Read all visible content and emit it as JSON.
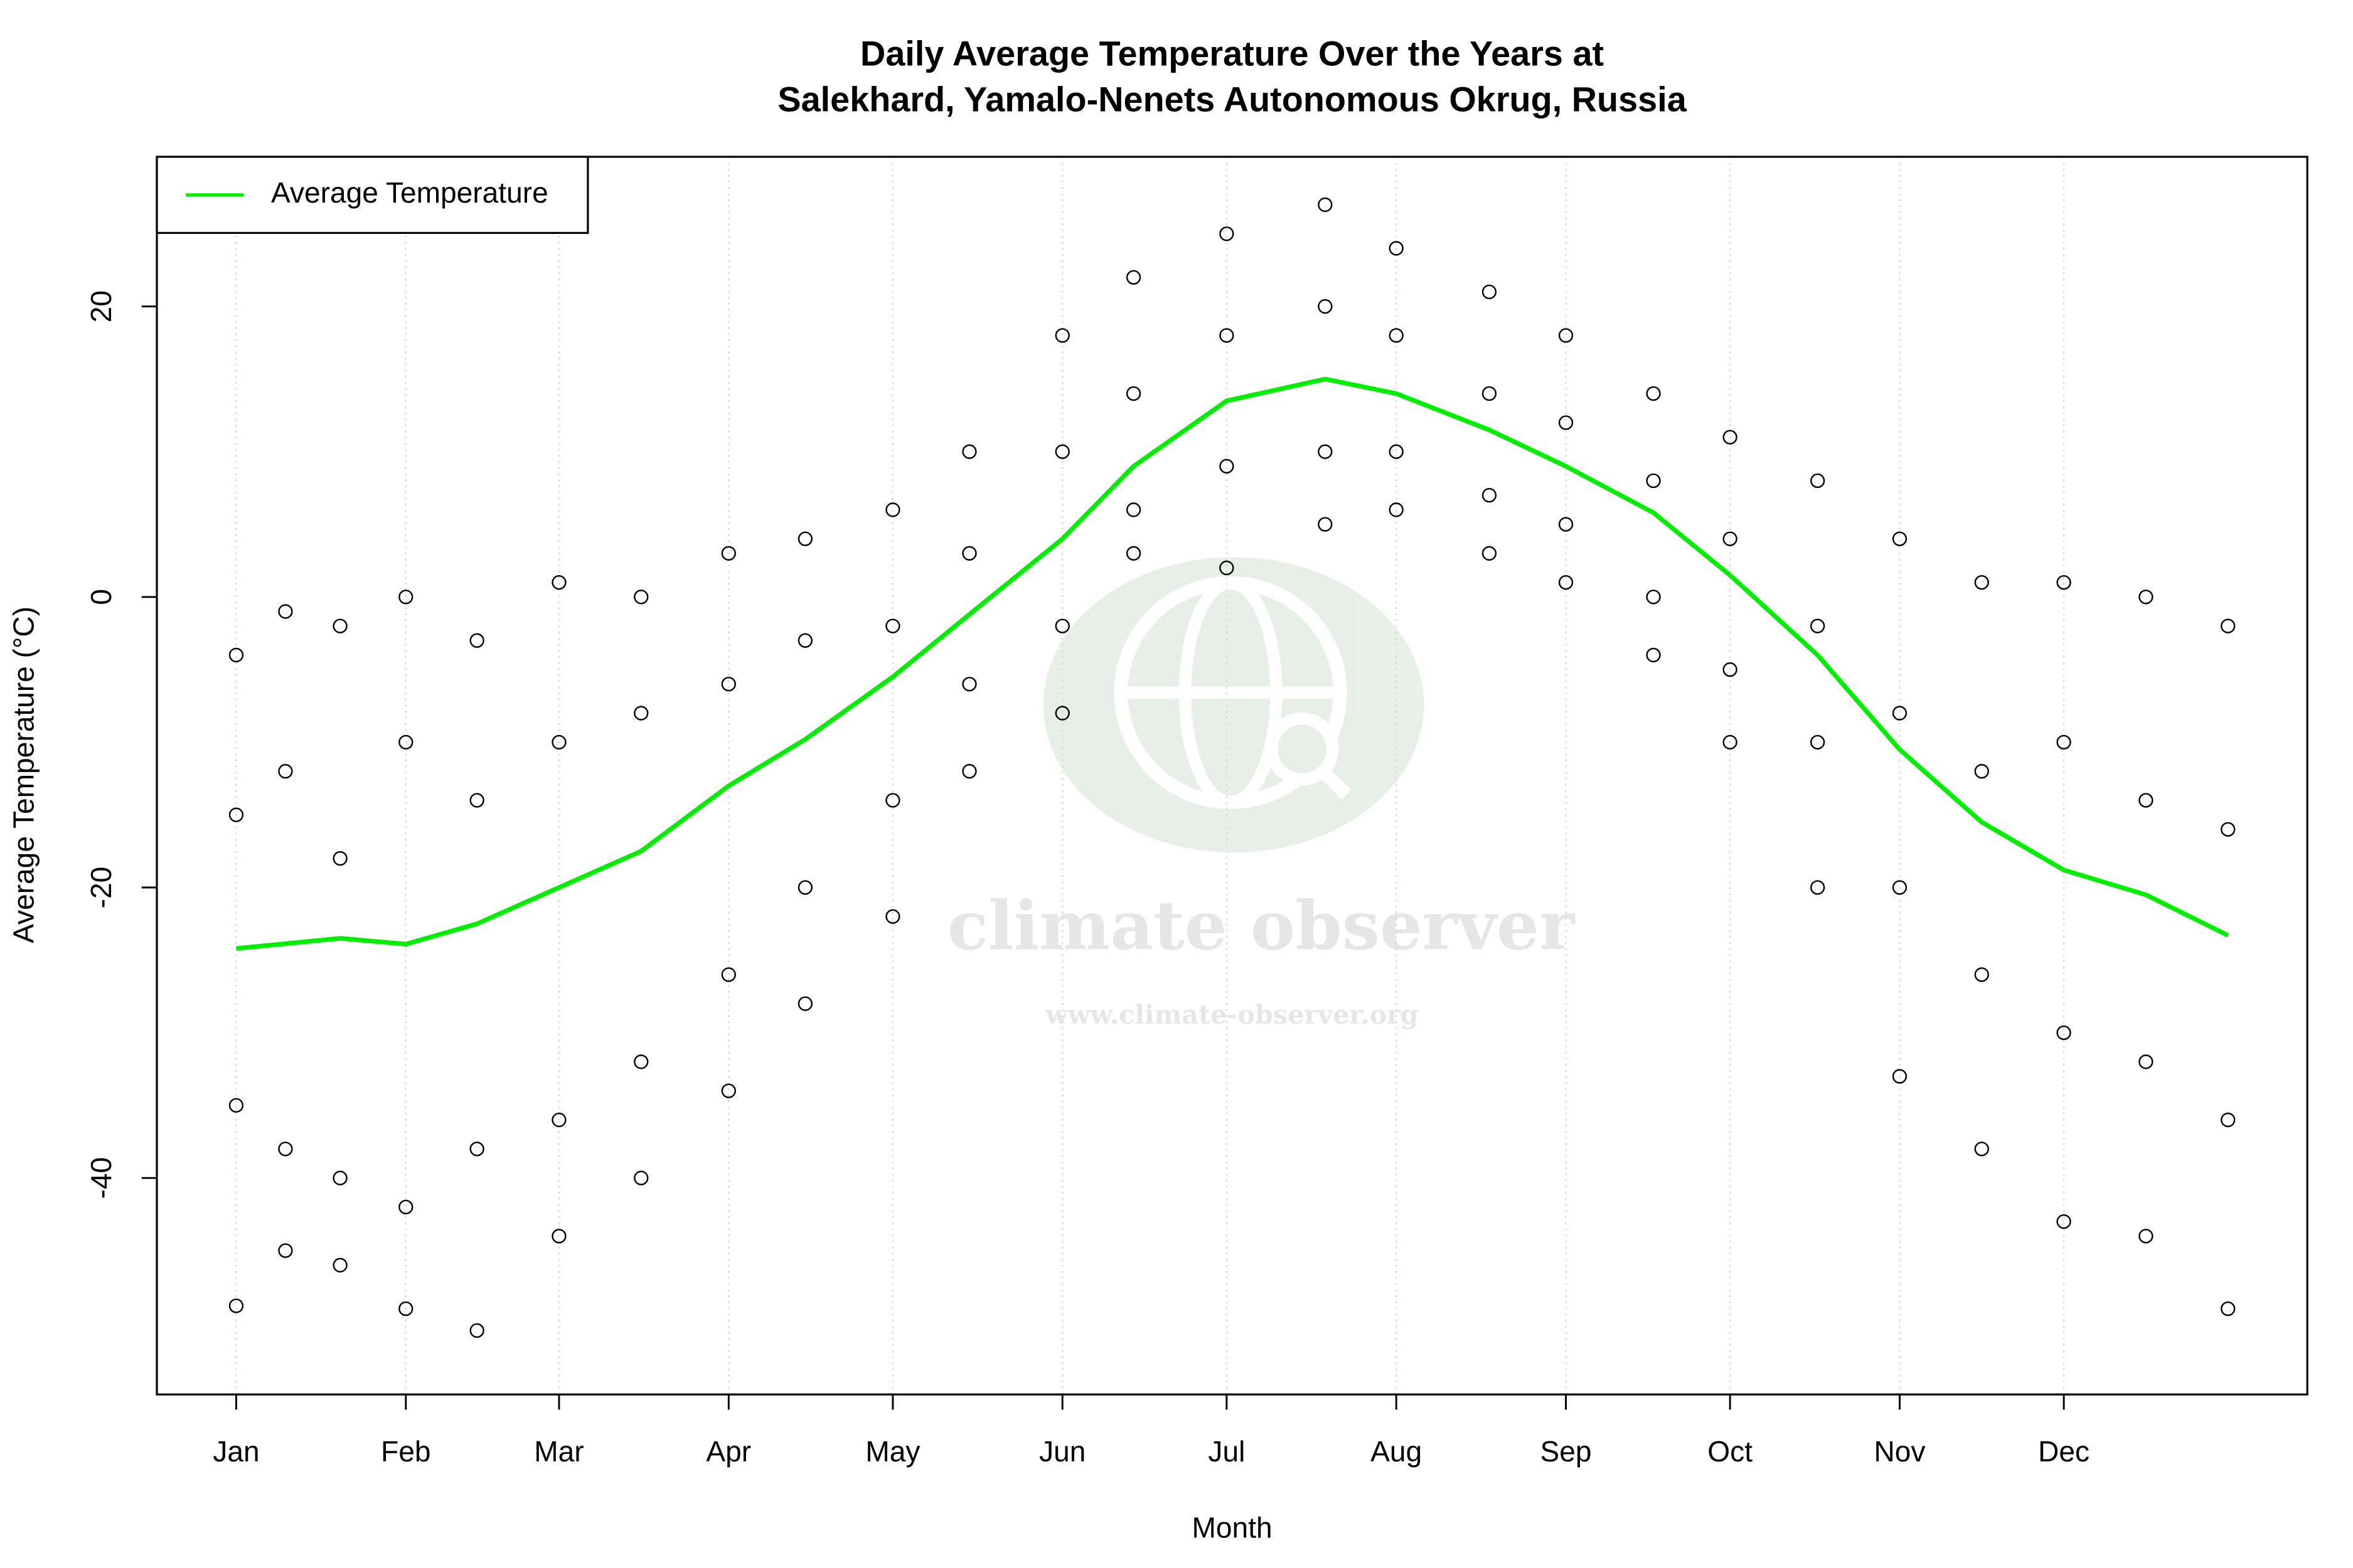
{
  "chart_data": {
    "type": "scatter",
    "title": [
      "Daily Average Temperature Over the Years at",
      "Salekhard, Yamalo-Nenets Autonomous Okrug, Russia"
    ],
    "xlabel": "Month",
    "ylabel": "Average Temperature (°C)",
    "watermark": [
      "climate observer",
      "www.climate-observer.org"
    ],
    "xlim": [
      -13.5,
      379.5
    ],
    "ylim": [
      -54.9,
      30.3
    ],
    "xticks": [
      {
        "value": 1,
        "label": "Jan"
      },
      {
        "value": 32,
        "label": "Feb"
      },
      {
        "value": 60,
        "label": "Mar"
      },
      {
        "value": 91,
        "label": "Apr"
      },
      {
        "value": 121,
        "label": "May"
      },
      {
        "value": 152,
        "label": "Jun"
      },
      {
        "value": 182,
        "label": "Jul"
      },
      {
        "value": 213,
        "label": "Aug"
      },
      {
        "value": 244,
        "label": "Sep"
      },
      {
        "value": 274,
        "label": "Oct"
      },
      {
        "value": 305,
        "label": "Nov"
      },
      {
        "value": 335,
        "label": "Dec"
      }
    ],
    "yticks": [
      -40,
      -20,
      0,
      20
    ],
    "grid": true,
    "legend": "top-left",
    "series": [
      {
        "type": "scatter",
        "color": "#000000",
        "x": [
          1,
          1,
          1,
          1,
          10,
          10,
          10,
          10,
          20,
          20,
          20,
          20,
          32,
          32,
          32,
          32,
          45,
          45,
          45,
          45,
          60,
          60,
          60,
          60,
          75,
          75,
          75,
          75,
          91,
          91,
          91,
          91,
          105,
          105,
          105,
          105,
          121,
          121,
          121,
          121,
          135,
          135,
          135,
          135,
          152,
          152,
          152,
          152,
          165,
          165,
          165,
          165,
          182,
          182,
          182,
          182,
          200,
          200,
          200,
          200,
          213,
          213,
          213,
          213,
          230,
          230,
          230,
          230,
          244,
          244,
          244,
          244,
          260,
          260,
          260,
          260,
          274,
          274,
          274,
          274,
          290,
          290,
          290,
          290,
          305,
          305,
          305,
          305,
          320,
          320,
          320,
          320,
          335,
          335,
          335,
          335,
          350,
          350,
          350,
          350,
          365,
          365,
          365,
          365
        ],
        "values": [
          -4,
          -48.8,
          -15,
          -35,
          -1,
          -45,
          -12,
          -38,
          -2,
          -46,
          -18,
          -40,
          0,
          -49,
          -10,
          -42,
          -3,
          -50.5,
          -14,
          -38,
          1,
          -44,
          -10,
          -36,
          0,
          -40,
          -8,
          -32,
          3,
          -34,
          -6,
          -26,
          4,
          -28,
          -3,
          -20,
          6,
          -22,
          -2,
          -14,
          10,
          -12,
          3,
          -6,
          18,
          -8,
          10,
          -2,
          22,
          3,
          14,
          6,
          25,
          2,
          18,
          9,
          27,
          5,
          20,
          10,
          24,
          6,
          18,
          10,
          21,
          3,
          14,
          7,
          18,
          1,
          12,
          5,
          14,
          -4,
          8,
          0,
          11,
          -10,
          4,
          -5,
          8,
          -20,
          -2,
          -10,
          4,
          -33,
          -8,
          -20,
          1,
          -38,
          -12,
          -26,
          1,
          -43,
          -10,
          -30,
          0,
          -44,
          -14,
          -32,
          -2,
          -49,
          -16,
          -36
        ]
      },
      {
        "type": "line",
        "name": "Average Temperature",
        "color": "#00ee00",
        "x": [
          1,
          20,
          32,
          45,
          60,
          75,
          91,
          105,
          121,
          135,
          152,
          165,
          182,
          200,
          213,
          230,
          244,
          260,
          274,
          290,
          305,
          320,
          335,
          350,
          365
        ],
        "values": [
          -24.2,
          -23.5,
          -23.9,
          -22.5,
          -20,
          -17.5,
          -13,
          -9.8,
          -5.5,
          -1.2,
          4,
          9,
          13.5,
          15,
          14,
          11.5,
          9,
          5.8,
          1.5,
          -4,
          -10.5,
          -15.5,
          -18.8,
          -20.5,
          -23.3
        ]
      }
    ]
  }
}
